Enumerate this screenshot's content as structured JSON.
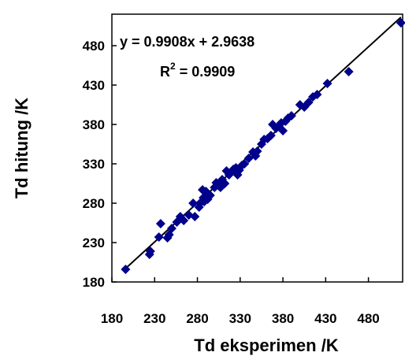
{
  "chart_data": {
    "type": "scatter",
    "xlabel": "Td eksperimen /K",
    "ylabel": "Td hitung /K",
    "xlim": [
      180,
      520
    ],
    "ylim": [
      180,
      520
    ],
    "x_ticks": [
      180,
      230,
      280,
      330,
      380,
      430,
      480
    ],
    "y_ticks": [
      180,
      230,
      280,
      330,
      380,
      430,
      480
    ],
    "grid": false,
    "legend": "none",
    "marker_color": "#00008B",
    "line_color": "#000000",
    "trendline": {
      "slope": 0.9908,
      "intercept": 2.9638,
      "x_range": [
        196,
        518
      ]
    },
    "annotations": {
      "equation": "y = 0.9908x + 2.9638",
      "r2_prefix": "R",
      "r2_sup": "2",
      "r2_suffix": " = 0.9909"
    },
    "points": [
      {
        "x": 196,
        "y": 196
      },
      {
        "x": 224,
        "y": 215
      },
      {
        "x": 225,
        "y": 219
      },
      {
        "x": 235,
        "y": 237
      },
      {
        "x": 237,
        "y": 254
      },
      {
        "x": 245,
        "y": 236
      },
      {
        "x": 247,
        "y": 240
      },
      {
        "x": 250,
        "y": 248
      },
      {
        "x": 256,
        "y": 256
      },
      {
        "x": 260,
        "y": 263
      },
      {
        "x": 264,
        "y": 258
      },
      {
        "x": 270,
        "y": 265
      },
      {
        "x": 275,
        "y": 280
      },
      {
        "x": 277,
        "y": 263
      },
      {
        "x": 282,
        "y": 275
      },
      {
        "x": 283,
        "y": 280
      },
      {
        "x": 286,
        "y": 297
      },
      {
        "x": 287,
        "y": 287
      },
      {
        "x": 288,
        "y": 282
      },
      {
        "x": 290,
        "y": 295
      },
      {
        "x": 292,
        "y": 285
      },
      {
        "x": 295,
        "y": 290
      },
      {
        "x": 300,
        "y": 300
      },
      {
        "x": 302,
        "y": 306
      },
      {
        "x": 305,
        "y": 302
      },
      {
        "x": 307,
        "y": 300
      },
      {
        "x": 309,
        "y": 310
      },
      {
        "x": 312,
        "y": 305
      },
      {
        "x": 314,
        "y": 321
      },
      {
        "x": 317,
        "y": 316
      },
      {
        "x": 320,
        "y": 320
      },
      {
        "x": 322,
        "y": 323
      },
      {
        "x": 325,
        "y": 325
      },
      {
        "x": 327,
        "y": 316
      },
      {
        "x": 329,
        "y": 322
      },
      {
        "x": 332,
        "y": 328
      },
      {
        "x": 335,
        "y": 330
      },
      {
        "x": 340,
        "y": 337
      },
      {
        "x": 345,
        "y": 345
      },
      {
        "x": 348,
        "y": 340
      },
      {
        "x": 350,
        "y": 346
      },
      {
        "x": 355,
        "y": 355
      },
      {
        "x": 358,
        "y": 361
      },
      {
        "x": 362,
        "y": 362
      },
      {
        "x": 366,
        "y": 366
      },
      {
        "x": 368,
        "y": 380
      },
      {
        "x": 372,
        "y": 375
      },
      {
        "x": 375,
        "y": 378
      },
      {
        "x": 378,
        "y": 382
      },
      {
        "x": 380,
        "y": 372
      },
      {
        "x": 383,
        "y": 384
      },
      {
        "x": 386,
        "y": 388
      },
      {
        "x": 390,
        "y": 391
      },
      {
        "x": 400,
        "y": 405
      },
      {
        "x": 405,
        "y": 402
      },
      {
        "x": 410,
        "y": 408
      },
      {
        "x": 415,
        "y": 415
      },
      {
        "x": 420,
        "y": 418
      },
      {
        "x": 432,
        "y": 432
      },
      {
        "x": 457,
        "y": 447
      },
      {
        "x": 518,
        "y": 509
      }
    ]
  }
}
